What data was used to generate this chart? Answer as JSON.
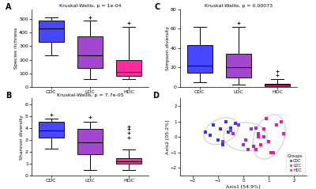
{
  "title_A": "Kruskal-Wallis, p = 1e-04",
  "title_B": "Kruskal-Wallis, p = 7.7e-05",
  "title_C": "Kruskal-Wallis, p = 0.00073",
  "ylabel_A": "Species richness",
  "ylabel_B": "Shannon diversity",
  "ylabel_C": "Simpson diversity",
  "xlabel_D": "Axis1 [54.9%]",
  "ylabel_D": "Axis2 [05.2%]",
  "groups": [
    "CDC",
    "LDC",
    "HDC"
  ],
  "colors": {
    "CDC": "#3333FF",
    "LDC": "#9933CC",
    "HDC": "#FF1493"
  },
  "box_A": {
    "CDC": {
      "whislo": 230,
      "q1": 330,
      "med": 430,
      "q3": 490,
      "whishi": 510,
      "fliers": []
    },
    "LDC": {
      "whislo": 55,
      "q1": 140,
      "med": 230,
      "q3": 370,
      "whishi": 490,
      "fliers": [
        510
      ]
    },
    "HDC": {
      "whislo": 55,
      "q1": 80,
      "med": 110,
      "q3": 200,
      "whishi": 440,
      "fliers": [
        470
      ]
    }
  },
  "box_B": {
    "CDC": {
      "whislo": 2.3,
      "q1": 3.2,
      "med": 3.8,
      "q3": 4.5,
      "whishi": 4.8,
      "fliers": [
        5.1
      ]
    },
    "LDC": {
      "whislo": 0.5,
      "q1": 1.8,
      "med": 2.8,
      "q3": 3.9,
      "whishi": 4.5,
      "fliers": [
        4.9
      ]
    },
    "HDC": {
      "whislo": 0.5,
      "q1": 1.0,
      "med": 1.2,
      "q3": 1.5,
      "whishi": 2.2,
      "fliers": [
        3.2,
        3.6,
        3.9,
        4.1
      ]
    }
  },
  "box_C": {
    "CDC": {
      "whislo": 5,
      "q1": 15,
      "med": 22,
      "q3": 43,
      "whishi": 62,
      "fliers": []
    },
    "LDC": {
      "whislo": 2,
      "q1": 10,
      "med": 20,
      "q3": 34,
      "whishi": 62,
      "fliers": [
        66
      ]
    },
    "HDC": {
      "whislo": 0,
      "q1": 1,
      "med": 2,
      "q3": 3,
      "whishi": 8,
      "fliers": [
        12,
        16
      ]
    }
  },
  "scatter_D": {
    "CDC": {
      "x": [
        -1.5,
        -1.2,
        -0.9,
        -0.7,
        -1.0,
        -0.5,
        -1.3,
        -0.3,
        -0.8,
        -0.6
      ],
      "y": [
        0.3,
        0.8,
        0.5,
        1.0,
        -0.2,
        0.6,
        0.1,
        0.9,
        -0.5,
        0.3
      ]
    },
    "LDC": {
      "x": [
        -0.8,
        -0.4,
        0.0,
        0.3,
        0.6,
        0.2,
        -0.2,
        0.8,
        0.5,
        0.1,
        -0.5,
        0.4
      ],
      "y": [
        -0.3,
        0.2,
        -0.5,
        0.5,
        0.2,
        -0.8,
        0.8,
        0.0,
        0.6,
        -0.2,
        0.4,
        -0.6
      ]
    },
    "HDC": {
      "x": [
        0.5,
        0.8,
        1.2,
        1.5,
        1.0,
        1.3,
        0.7,
        1.6,
        0.9,
        1.1,
        0.6
      ],
      "y": [
        -0.8,
        0.5,
        -1.0,
        1.0,
        -0.3,
        0.8,
        -0.5,
        0.2,
        1.2,
        -1.0,
        0.0
      ]
    }
  },
  "background_color": "#FFFFFF"
}
